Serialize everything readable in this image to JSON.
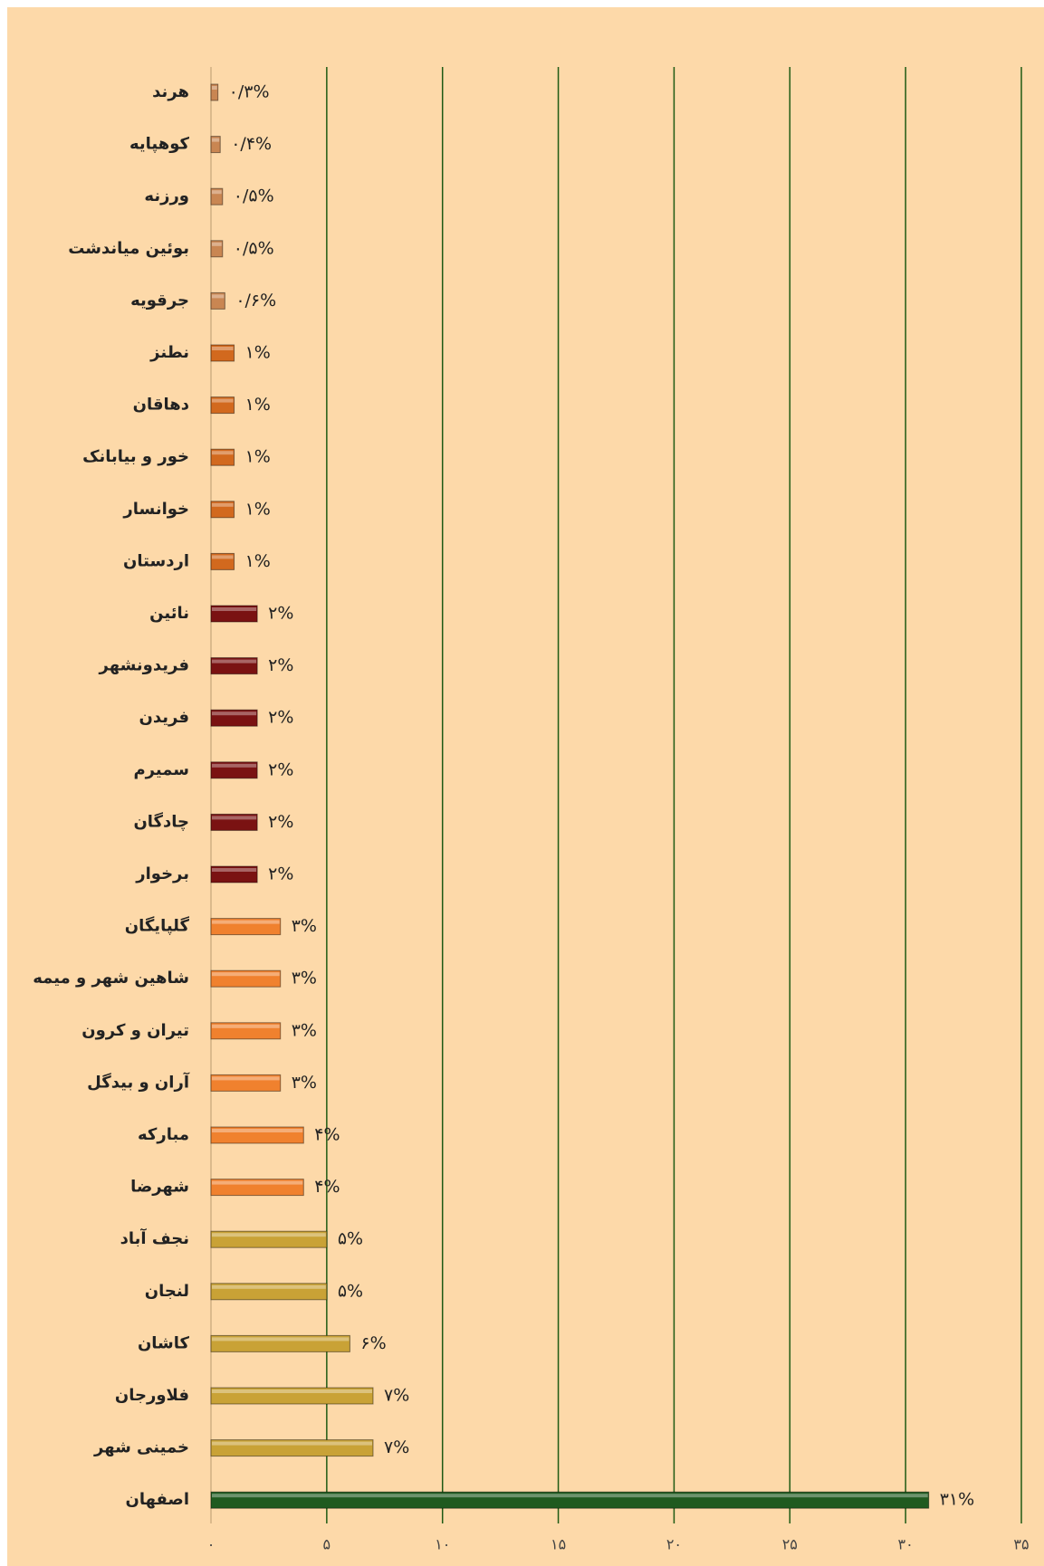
{
  "chart_data": {
    "type": "bar",
    "orientation": "horizontal",
    "categories": [
      "هرند",
      "کوهپایه",
      "ورزنه",
      "بوئین میاندشت",
      "جرقویه",
      "نطنز",
      "دهاقان",
      "خور و بیابانک",
      "خوانسار",
      "اردستان",
      "نائین",
      "فریدونشهر",
      "فریدن",
      "سمیرم",
      "چادگان",
      "برخوار",
      "گلپایگان",
      "شاهین شهر و میمه",
      "تیران و کرون",
      "آران و بیدگل",
      "مبارکه",
      "شهرضا",
      "نجف آباد",
      "لنجان",
      "کاشان",
      "فلاورجان",
      "خمینی شهر",
      "اصفهان"
    ],
    "values": [
      0.3,
      0.4,
      0.5,
      0.5,
      0.6,
      1,
      1,
      1,
      1,
      1,
      2,
      2,
      2,
      2,
      2,
      2,
      3,
      3,
      3,
      3,
      4,
      4,
      5,
      5,
      6,
      7,
      7,
      31
    ],
    "value_labels": [
      "۰/۳%",
      "۰/۴%",
      "۰/۵%",
      "۰/۵%",
      "۰/۶%",
      "۱%",
      "۱%",
      "۱%",
      "۱%",
      "۱%",
      "۲%",
      "۲%",
      "۲%",
      "۲%",
      "۲%",
      "۲%",
      "۳%",
      "۳%",
      "۳%",
      "۳%",
      "۴%",
      "۴%",
      "۵%",
      "۵%",
      "۶%",
      "۷%",
      "۷%",
      "۳۱%"
    ],
    "colors": [
      "#c98652",
      "#c98652",
      "#c98652",
      "#c98652",
      "#c98652",
      "#d2691e",
      "#d2691e",
      "#d2691e",
      "#d2691e",
      "#d2691e",
      "#7a1212",
      "#7a1212",
      "#7a1212",
      "#7a1212",
      "#7a1212",
      "#7a1212",
      "#f0812e",
      "#f0812e",
      "#f0812e",
      "#f0812e",
      "#f0812e",
      "#f0812e",
      "#c9a236",
      "#c9a236",
      "#c9a236",
      "#c9a236",
      "#c9a236",
      "#1f5a1f"
    ],
    "xlim": [
      0,
      35
    ],
    "xticks": [
      {
        "value": 0,
        "label": "۰"
      },
      {
        "value": 5,
        "label": "۵"
      },
      {
        "value": 10,
        "label": "۱۰"
      },
      {
        "value": 15,
        "label": "۱۵"
      },
      {
        "value": 20,
        "label": "۲۰"
      },
      {
        "value": 25,
        "label": "۲۵"
      },
      {
        "value": 30,
        "label": "۳۰"
      },
      {
        "value": 35,
        "label": "۳۵"
      }
    ],
    "grid": true,
    "grid_color": "#1e5a14"
  }
}
